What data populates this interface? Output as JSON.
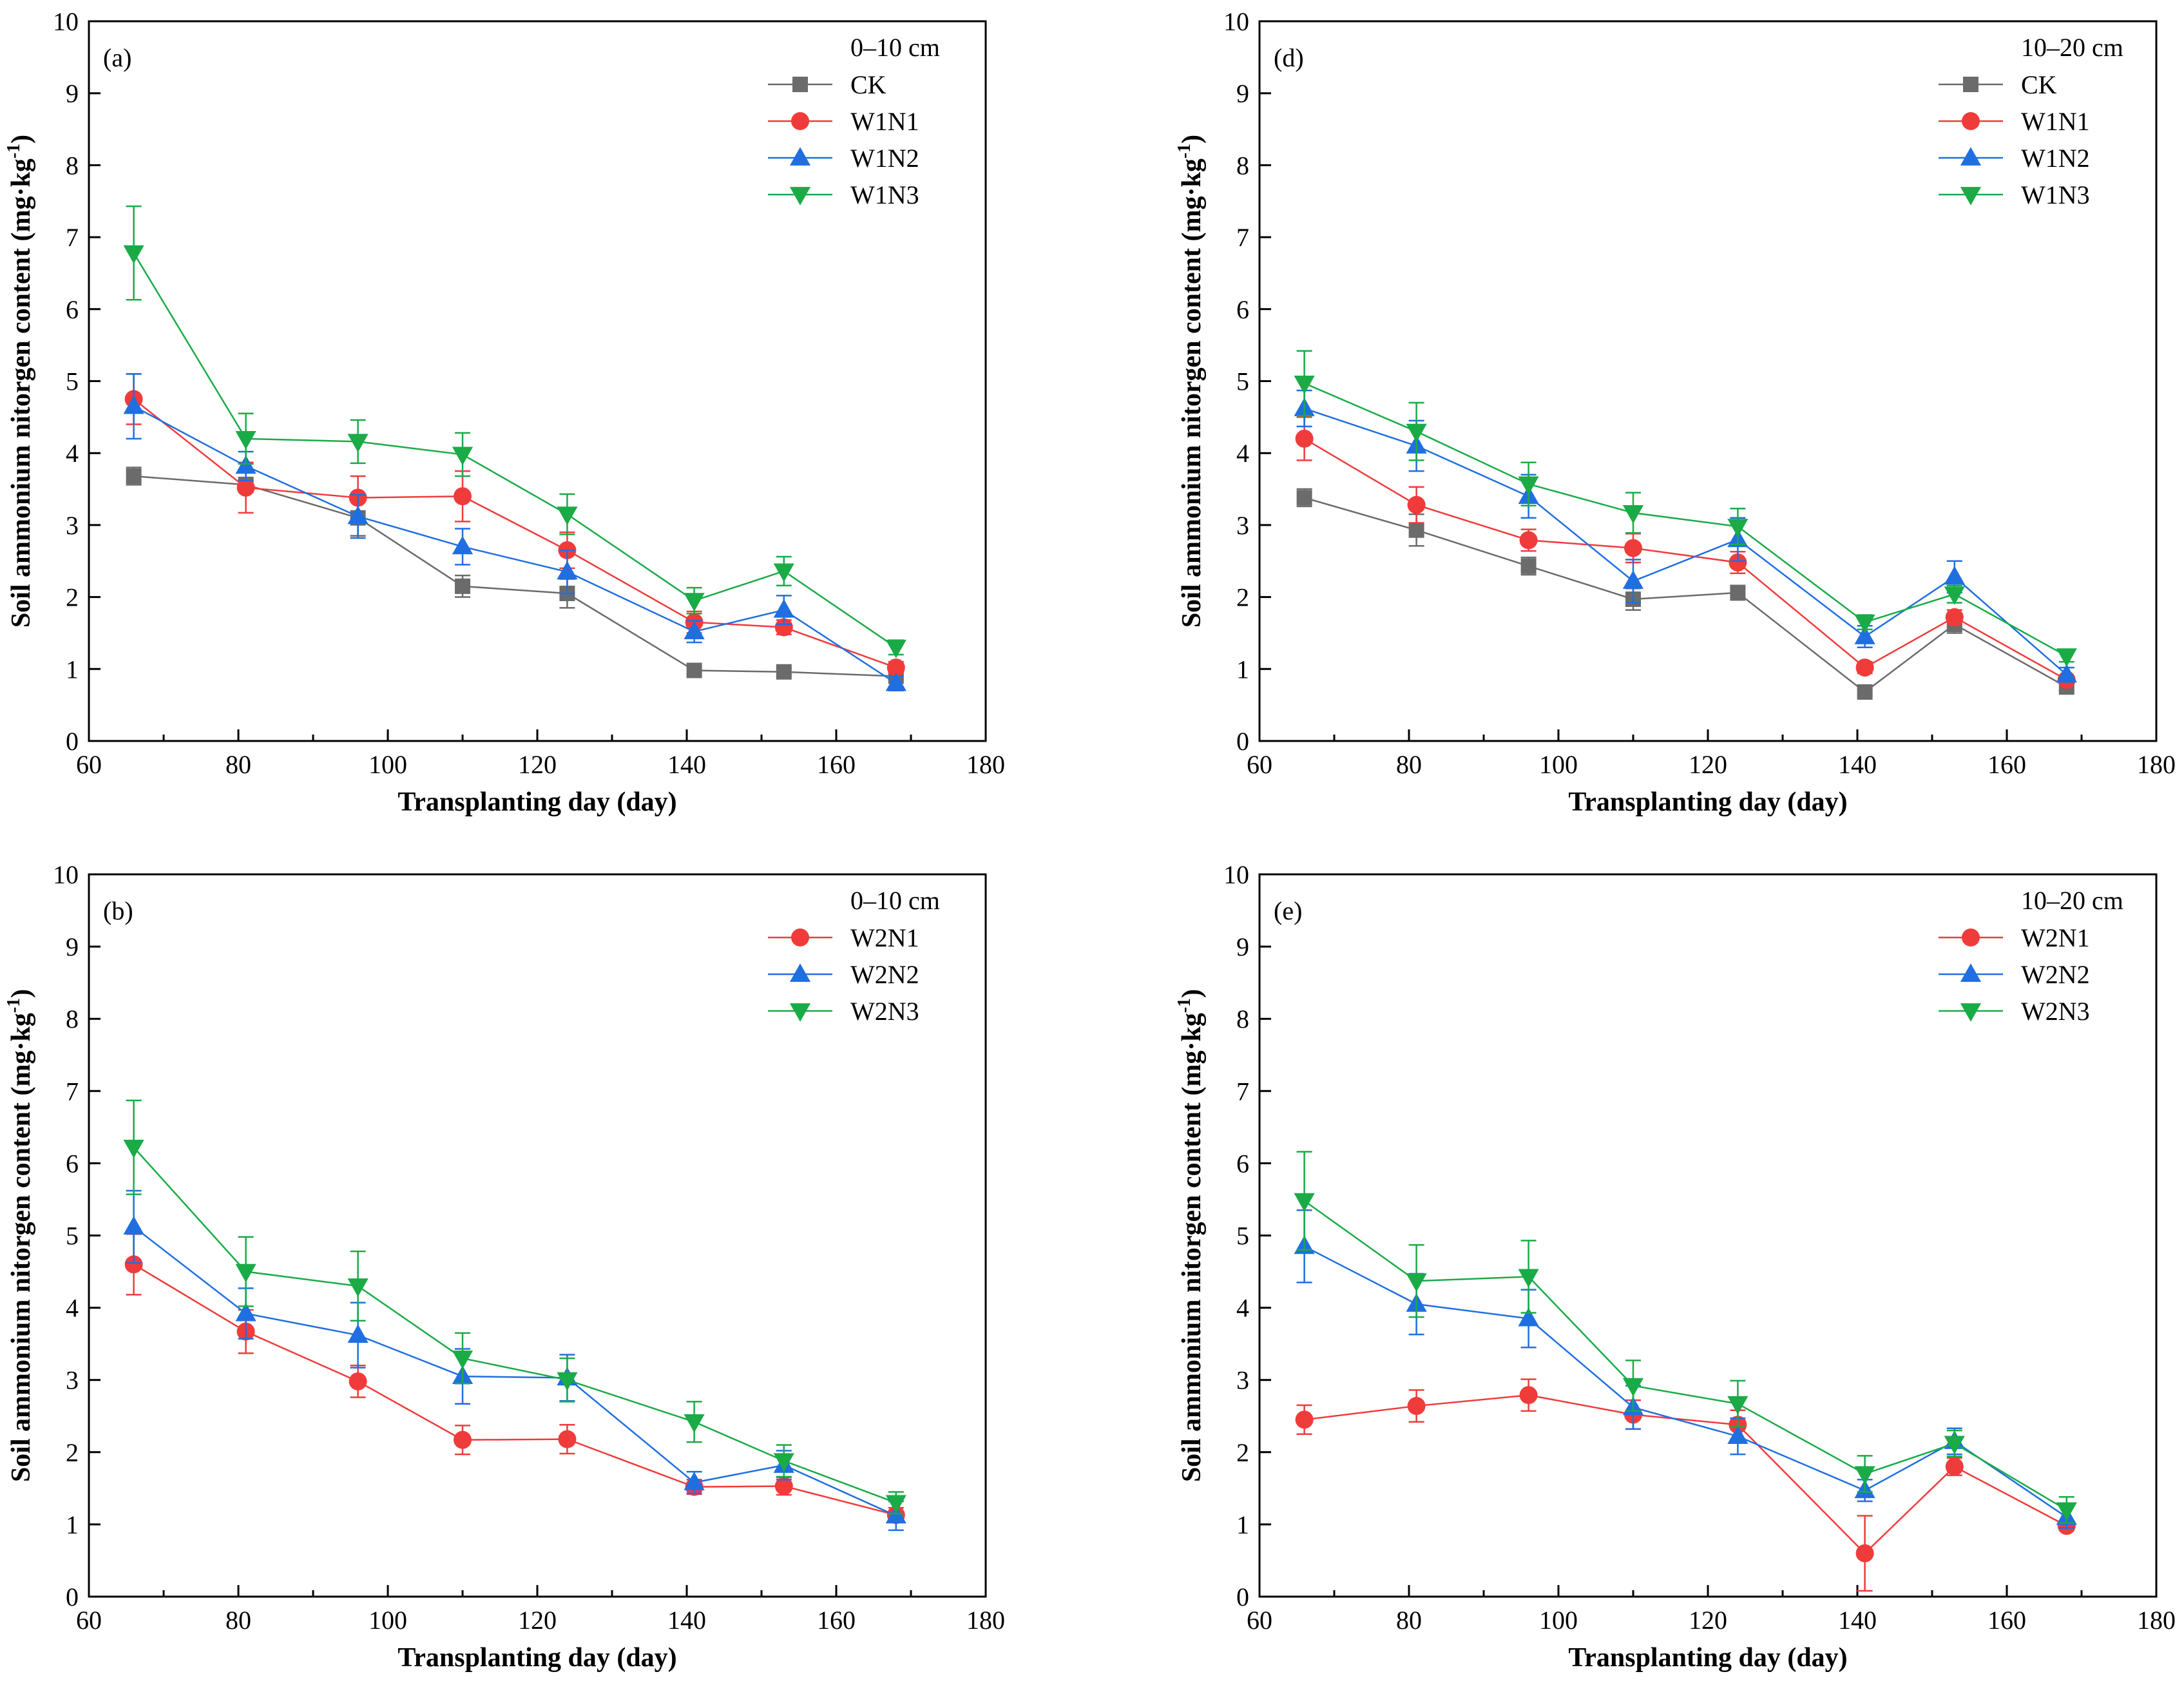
{
  "colors": {
    "CK": "#6b6b6b",
    "N1": "#f03b3b",
    "N2": "#1f6fe0",
    "N3": "#1aab47"
  },
  "chart_data": [
    {
      "type": "line",
      "panel_label": "(a)",
      "depth_label": "0–10 cm",
      "xlabel": "Transplanting day (day)",
      "ylabel": "Soil ammonium nitorgen content (mg·kg",
      "ylabel_sup": "-1",
      "ylabel_close": ")",
      "xlim": [
        60,
        180
      ],
      "ylim": [
        0,
        10
      ],
      "xticks": [
        "60",
        "80",
        "100",
        "120",
        "140",
        "160",
        "180"
      ],
      "yticks": [
        "0",
        "1",
        "2",
        "3",
        "4",
        "5",
        "6",
        "7",
        "8",
        "9",
        "10"
      ],
      "x": [
        66,
        81,
        96,
        110,
        124,
        141,
        153,
        168
      ],
      "series": [
        {
          "name": "CK",
          "color_key": "CK",
          "marker": "square",
          "values": [
            3.68,
            3.56,
            3.1,
            2.15,
            2.05,
            0.98,
            0.96,
            0.9
          ],
          "err": [
            0.12,
            0.1,
            0.25,
            0.15,
            0.2,
            0.05,
            0.05,
            0.05
          ]
        },
        {
          "name": "W1N1",
          "color_key": "N1",
          "marker": "circle",
          "values": [
            4.75,
            3.52,
            3.38,
            3.4,
            2.65,
            1.65,
            1.58,
            1.02
          ],
          "err": [
            0.35,
            0.35,
            0.3,
            0.35,
            0.25,
            0.15,
            0.1,
            0.08
          ]
        },
        {
          "name": "W1N2",
          "color_key": "N2",
          "marker": "triangle-up",
          "values": [
            4.65,
            3.82,
            3.12,
            2.7,
            2.35,
            1.52,
            1.82,
            0.8
          ],
          "err": [
            0.45,
            0.2,
            0.3,
            0.25,
            0.3,
            0.15,
            0.2,
            0.1
          ]
        },
        {
          "name": "W1N3",
          "color_key": "N3",
          "marker": "triangle-down",
          "values": [
            6.78,
            4.2,
            4.16,
            3.98,
            3.15,
            1.95,
            2.36,
            1.3
          ],
          "err": [
            0.65,
            0.35,
            0.3,
            0.3,
            0.28,
            0.18,
            0.2,
            0.1
          ]
        }
      ]
    },
    {
      "type": "line",
      "panel_label": "(d)",
      "depth_label": "10–20 cm",
      "xlabel": "Transplanting day (day)",
      "ylabel": "Soil ammonium nitorgen content (mg·kg",
      "ylabel_sup": "-1",
      "ylabel_close": ")",
      "xlim": [
        60,
        180
      ],
      "ylim": [
        0,
        10
      ],
      "xticks": [
        "60",
        "80",
        "100",
        "120",
        "140",
        "160",
        "180"
      ],
      "yticks": [
        "0",
        "1",
        "2",
        "3",
        "4",
        "5",
        "6",
        "7",
        "8",
        "9",
        "10"
      ],
      "x": [
        66,
        81,
        96,
        110,
        124,
        141,
        153,
        168
      ],
      "series": [
        {
          "name": "CK",
          "color_key": "CK",
          "marker": "square",
          "values": [
            3.38,
            2.93,
            2.43,
            1.97,
            2.06,
            0.68,
            1.62,
            0.75
          ],
          "err": [
            0.12,
            0.22,
            0.12,
            0.15,
            0.1,
            0.05,
            0.12,
            0.05
          ]
        },
        {
          "name": "W1N1",
          "color_key": "N1",
          "marker": "circle",
          "values": [
            4.2,
            3.28,
            2.79,
            2.68,
            2.48,
            1.02,
            1.72,
            0.85
          ],
          "err": [
            0.3,
            0.25,
            0.15,
            0.2,
            0.15,
            0.08,
            0.1,
            0.05
          ]
        },
        {
          "name": "W1N2",
          "color_key": "N2",
          "marker": "triangle-up",
          "values": [
            4.62,
            4.1,
            3.4,
            2.22,
            2.8,
            1.45,
            2.28,
            0.92
          ],
          "err": [
            0.25,
            0.35,
            0.3,
            0.3,
            0.3,
            0.15,
            0.22,
            0.1
          ]
        },
        {
          "name": "W1N3",
          "color_key": "N3",
          "marker": "triangle-down",
          "values": [
            4.97,
            4.3,
            3.57,
            3.17,
            2.98,
            1.65,
            2.04,
            1.18
          ],
          "err": [
            0.45,
            0.4,
            0.3,
            0.28,
            0.25,
            0.1,
            0.12,
            0.08
          ]
        }
      ]
    },
    {
      "type": "line",
      "panel_label": "(b)",
      "depth_label": "0–10 cm",
      "xlabel": "Transplanting day (day)",
      "ylabel": "Soil ammonium nitorgen content (mg·kg",
      "ylabel_sup": "-1",
      "ylabel_close": ")",
      "xlim": [
        60,
        180
      ],
      "ylim": [
        0,
        10
      ],
      "xticks": [
        "60",
        "80",
        "100",
        "120",
        "140",
        "160",
        "180"
      ],
      "yticks": [
        "0",
        "1",
        "2",
        "3",
        "4",
        "5",
        "6",
        "7",
        "8",
        "9",
        "10"
      ],
      "x": [
        66,
        81,
        96,
        110,
        124,
        141,
        153,
        168
      ],
      "series": [
        {
          "name": "W2N1",
          "color_key": "N1",
          "marker": "circle",
          "values": [
            4.6,
            3.67,
            2.98,
            2.17,
            2.18,
            1.52,
            1.53,
            1.13
          ],
          "err": [
            0.42,
            0.3,
            0.22,
            0.2,
            0.2,
            0.1,
            0.12,
            0.1
          ]
        },
        {
          "name": "W2N2",
          "color_key": "N2",
          "marker": "triangle-up",
          "values": [
            5.12,
            3.92,
            3.62,
            3.05,
            3.03,
            1.58,
            1.82,
            1.12
          ],
          "err": [
            0.5,
            0.35,
            0.45,
            0.38,
            0.32,
            0.15,
            0.2,
            0.2
          ]
        },
        {
          "name": "W2N3",
          "color_key": "N3",
          "marker": "triangle-down",
          "values": [
            6.22,
            4.5,
            4.3,
            3.3,
            3.0,
            2.42,
            1.88,
            1.3
          ],
          "err": [
            0.65,
            0.48,
            0.48,
            0.35,
            0.3,
            0.28,
            0.22,
            0.15
          ]
        }
      ]
    },
    {
      "type": "line",
      "panel_label": "(e)",
      "depth_label": "10–20 cm",
      "xlabel": "Transplanting day (day)",
      "ylabel": "Soil ammonium nitorgen content (mg·kg",
      "ylabel_sup": "-1",
      "ylabel_close": ")",
      "xlim": [
        60,
        180
      ],
      "ylim": [
        0,
        10
      ],
      "xticks": [
        "60",
        "80",
        "100",
        "120",
        "140",
        "160",
        "180"
      ],
      "yticks": [
        "0",
        "1",
        "2",
        "3",
        "4",
        "5",
        "6",
        "7",
        "8",
        "9",
        "10"
      ],
      "x": [
        66,
        81,
        96,
        110,
        124,
        141,
        153,
        168
      ],
      "series": [
        {
          "name": "W2N1",
          "color_key": "N1",
          "marker": "circle",
          "values": [
            2.45,
            2.64,
            2.79,
            2.52,
            2.38,
            0.6,
            1.8,
            0.98
          ],
          "err": [
            0.2,
            0.22,
            0.22,
            0.2,
            0.2,
            0.52,
            0.12,
            0.06
          ]
        },
        {
          "name": "W2N2",
          "color_key": "N2",
          "marker": "triangle-up",
          "values": [
            4.85,
            4.05,
            3.85,
            2.62,
            2.22,
            1.47,
            2.15,
            1.1
          ],
          "err": [
            0.5,
            0.42,
            0.4,
            0.3,
            0.25,
            0.15,
            0.18,
            0.15
          ]
        },
        {
          "name": "W2N3",
          "color_key": "N3",
          "marker": "triangle-down",
          "values": [
            5.48,
            4.37,
            4.43,
            2.92,
            2.67,
            1.7,
            2.12,
            1.2
          ],
          "err": [
            0.68,
            0.5,
            0.5,
            0.35,
            0.32,
            0.25,
            0.18,
            0.18
          ]
        }
      ]
    }
  ]
}
